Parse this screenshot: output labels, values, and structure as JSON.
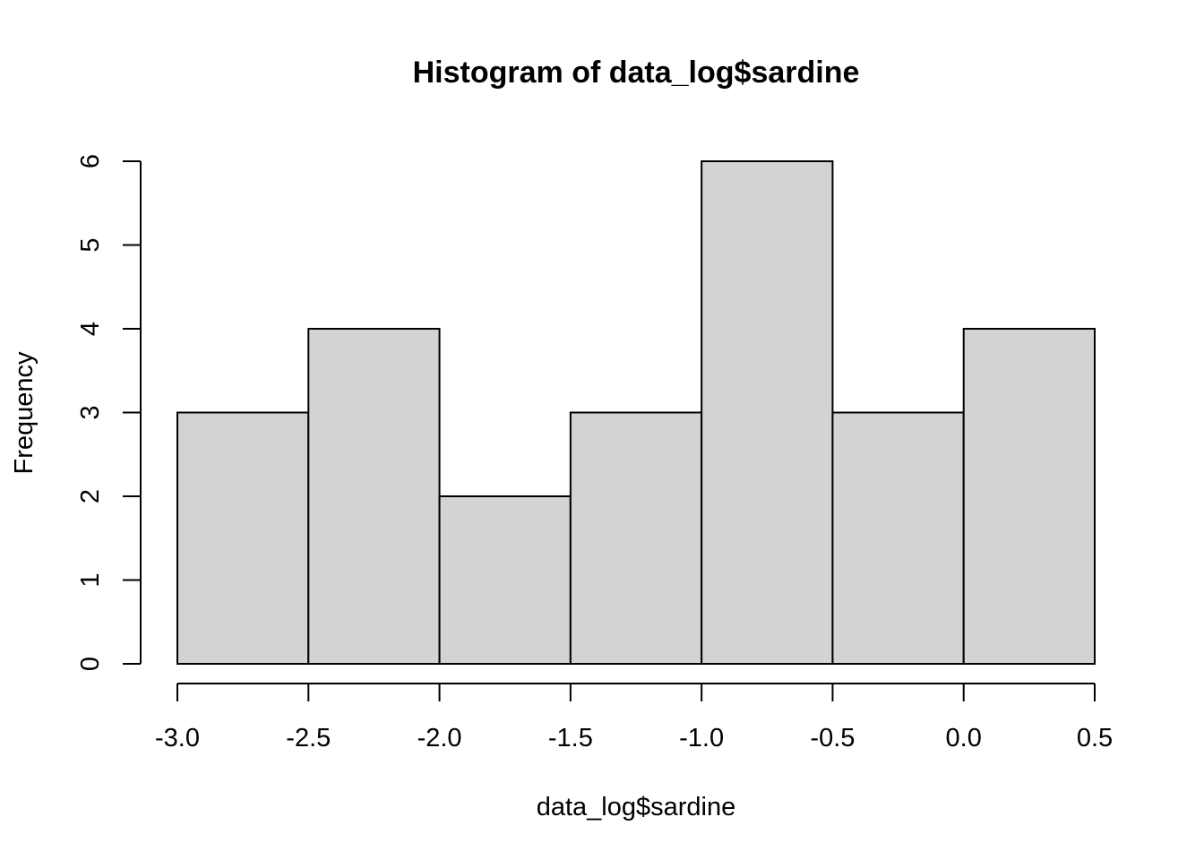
{
  "chart_data": {
    "type": "bar",
    "subtype": "histogram",
    "title": "Histogram of data_log$sardine",
    "xlabel": "data_log$sardine",
    "ylabel": "Frequency",
    "bins": [
      {
        "from": -3.0,
        "to": -2.5,
        "count": 3
      },
      {
        "from": -2.5,
        "to": -2.0,
        "count": 4
      },
      {
        "from": -2.0,
        "to": -1.5,
        "count": 2
      },
      {
        "from": -1.5,
        "to": -1.0,
        "count": 3
      },
      {
        "from": -1.0,
        "to": -0.5,
        "count": 6
      },
      {
        "from": -0.5,
        "to": 0.0,
        "count": 3
      },
      {
        "from": 0.0,
        "to": 0.5,
        "count": 4
      }
    ],
    "xlim": [
      -3.0,
      0.5
    ],
    "ylim": [
      0,
      6
    ],
    "x_ticks": [
      "-3.0",
      "-2.5",
      "-2.0",
      "-1.5",
      "-1.0",
      "-0.5",
      "0.0",
      "0.5"
    ],
    "x_tick_values": [
      -3.0,
      -2.5,
      -2.0,
      -1.5,
      -1.0,
      -0.5,
      0.0,
      0.5
    ],
    "y_ticks": [
      "0",
      "1",
      "2",
      "3",
      "4",
      "5",
      "6"
    ],
    "y_tick_values": [
      0,
      1,
      2,
      3,
      4,
      5,
      6
    ],
    "bar_color": "#d3d3d3",
    "grid": false,
    "legend": "none"
  }
}
